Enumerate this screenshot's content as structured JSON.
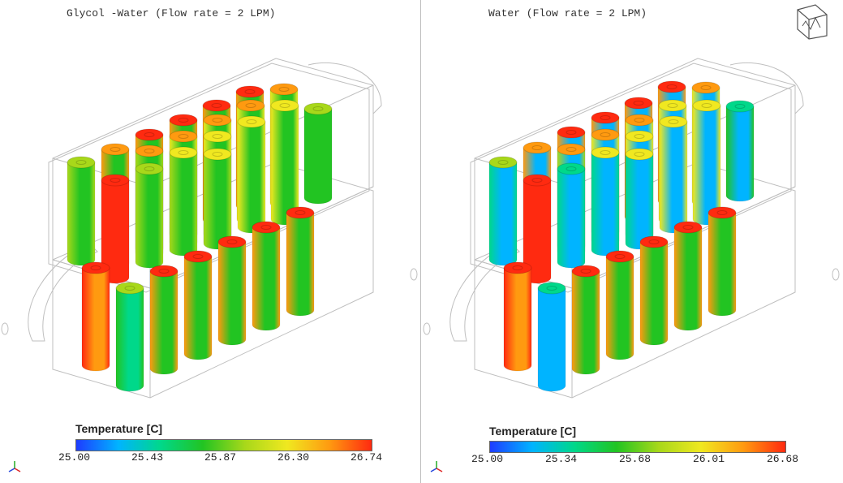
{
  "panels": [
    {
      "title": "Glycol -Water (Flow rate = 2 LPM)",
      "legend": {
        "title": "Temperature [C]",
        "ticks": [
          "25.00",
          "25.43",
          "25.87",
          "26.30",
          "26.74"
        ]
      }
    },
    {
      "title": "Water (Flow rate = 2 LPM)",
      "legend": {
        "title": "Temperature [C]",
        "ticks": [
          "25.00",
          "25.34",
          "25.68",
          "26.01",
          "26.68"
        ]
      }
    }
  ],
  "colors": {
    "scale": [
      "#1e3cff",
      "#00b4ff",
      "#00d88a",
      "#22c422",
      "#a8d81a",
      "#f0e820",
      "#ff9a10",
      "#ff2a10"
    ],
    "wireframe": "#bfbfbf"
  },
  "icons": {
    "view_cube": "view-cube-icon",
    "axis_triad": "axis-triad-icon"
  }
}
